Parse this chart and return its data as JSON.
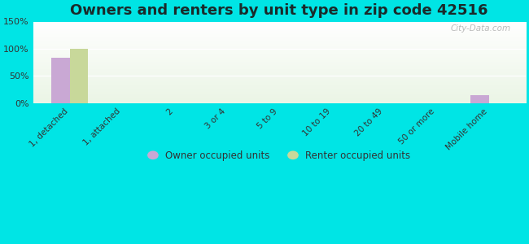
{
  "title": "Owners and renters by unit type in zip code 42516",
  "categories": [
    "1, detached",
    "1, attached",
    "2",
    "3 or 4",
    "5 to 9",
    "10 to 19",
    "20 to 49",
    "50 or more",
    "Mobile home"
  ],
  "owner_values": [
    83,
    0,
    0,
    0,
    0,
    0,
    0,
    0,
    15
  ],
  "renter_values": [
    100,
    0,
    0,
    0,
    0,
    0,
    0,
    0,
    0
  ],
  "owner_color": "#c9a8d4",
  "renter_color": "#c8d89a",
  "background_color": "#00e5e5",
  "ylim": [
    0,
    150
  ],
  "yticks": [
    0,
    50,
    100,
    150
  ],
  "ytick_labels": [
    "0%",
    "50%",
    "100%",
    "150%"
  ],
  "bar_width": 0.35,
  "legend_labels": [
    "Owner occupied units",
    "Renter occupied units"
  ],
  "watermark": "City-Data.com",
  "title_fontsize": 13,
  "title_color": "#1a2a2a"
}
